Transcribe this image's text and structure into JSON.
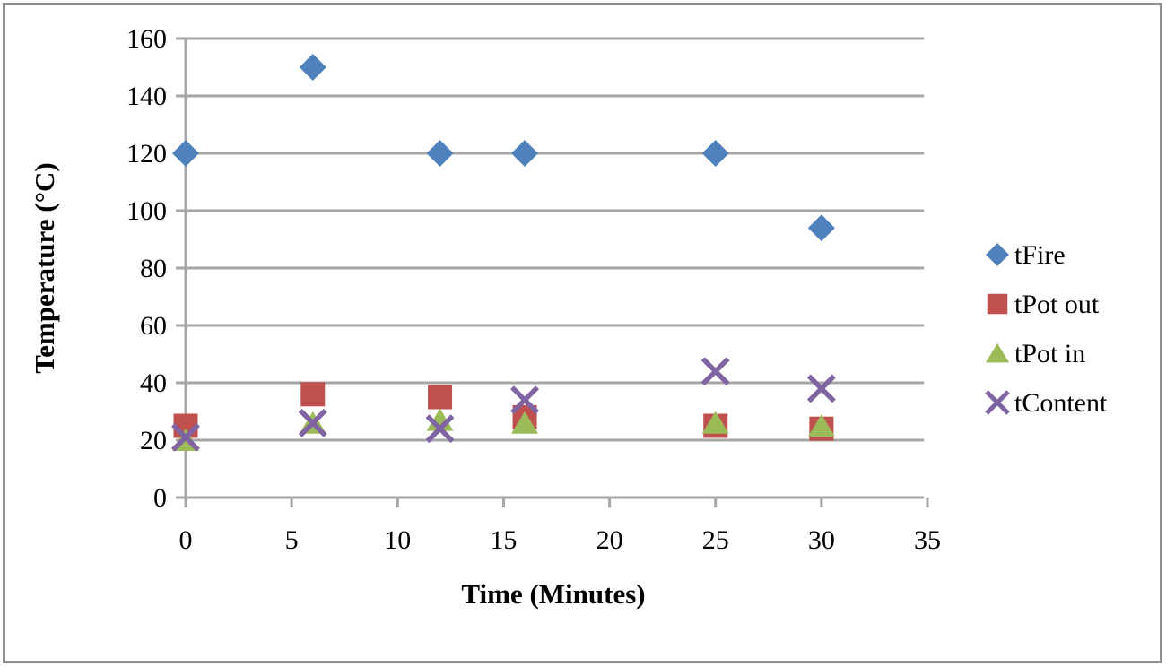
{
  "chart_data": {
    "type": "scatter",
    "title": "",
    "xlabel": "Time (Minutes)",
    "ylabel": "Temperature (°C)",
    "xlim": [
      0,
      35
    ],
    "ylim": [
      0,
      160
    ],
    "x_ticks": [
      0,
      5,
      10,
      15,
      20,
      25,
      30,
      35
    ],
    "y_ticks": [
      0,
      20,
      40,
      60,
      80,
      100,
      120,
      140,
      160
    ],
    "grid": "horizontal",
    "legend_position": "right",
    "series": [
      {
        "name": "tFire",
        "marker": "diamond",
        "color": "#4f81bd",
        "points": [
          [
            0,
            120
          ],
          [
            6,
            150
          ],
          [
            12,
            120
          ],
          [
            16,
            120
          ],
          [
            25,
            120
          ],
          [
            30,
            94
          ]
        ]
      },
      {
        "name": "tPot out",
        "marker": "square",
        "color": "#c0504d",
        "points": [
          [
            0,
            25
          ],
          [
            6,
            36
          ],
          [
            12,
            35
          ],
          [
            16,
            28
          ],
          [
            25,
            25
          ],
          [
            30,
            24
          ]
        ]
      },
      {
        "name": "tPot in",
        "marker": "triangle",
        "color": "#9bbb59",
        "points": [
          [
            0,
            20
          ],
          [
            6,
            26
          ],
          [
            12,
            27
          ],
          [
            16,
            26
          ],
          [
            25,
            26
          ],
          [
            30,
            25
          ]
        ]
      },
      {
        "name": "tContent",
        "marker": "x",
        "color": "#8064a2",
        "points": [
          [
            0,
            21
          ],
          [
            6,
            26
          ],
          [
            12,
            24
          ],
          [
            16,
            34
          ],
          [
            25,
            44
          ],
          [
            30,
            38
          ]
        ]
      }
    ],
    "colors": {
      "gridline": "#a6a6a6",
      "axis": "#a6a6a6",
      "text": "#000000",
      "frame_border": "#8f8f8f",
      "background": "#ffffff"
    }
  }
}
